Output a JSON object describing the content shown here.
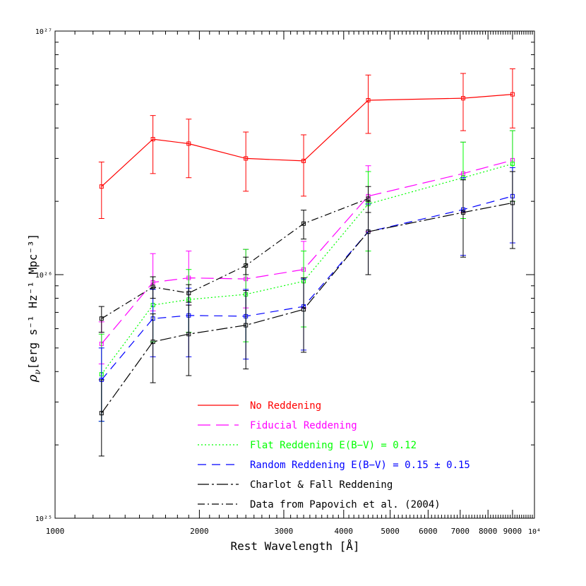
{
  "chart_data": {
    "type": "line",
    "xlabel": "Rest Wavelength [Å]",
    "ylabel_main": "ρ",
    "ylabel_sub": "ν",
    "ylabel_unit": "[erg s⁻¹ Hz⁻¹ Mpc⁻³]",
    "x_scale": "log",
    "y_scale": "log",
    "xlim": [
      1000,
      10000
    ],
    "ylim": [
      1e+25,
      1e+27
    ],
    "x_ticks": [
      {
        "value": 1000,
        "label": "1000"
      },
      {
        "value": 2000,
        "label": "2000"
      },
      {
        "value": 3000,
        "label": "3000"
      },
      {
        "value": 4000,
        "label": "4000"
      },
      {
        "value": 5000,
        "label": "5000"
      },
      {
        "value": 6000,
        "label": "6000"
      },
      {
        "value": 7000,
        "label": "7000"
      },
      {
        "value": 8000,
        "label": "8000"
      },
      {
        "value": 9000,
        "label": "9000"
      },
      {
        "value": 10000,
        "label": "10⁴"
      }
    ],
    "y_ticks": [
      {
        "value": 1e+25,
        "label": "10²⁵"
      },
      {
        "value": 1e+26,
        "label": "10²⁶"
      },
      {
        "value": 1e+27,
        "label": "10²⁷"
      }
    ],
    "legend_position": "bottom-center",
    "x": [
      1250,
      1600,
      1900,
      2500,
      3300,
      4500,
      7100,
      9000
    ],
    "series": [
      {
        "name": "No Reddening",
        "color": "#ff0000",
        "dash": "",
        "values": [
          2.3e+26,
          3.6e+26,
          3.45e+26,
          3e+26,
          2.93e+26,
          5.2e+26,
          5.3e+26,
          5.5e+26
        ],
        "err_low": [
          1.7e+26,
          2.6e+26,
          2.5e+26,
          2.2e+26,
          2.1e+26,
          3.8e+26,
          3.9e+26,
          4e+26
        ],
        "err_high": [
          2.9e+26,
          4.5e+26,
          4.35e+26,
          3.85e+26,
          3.75e+26,
          6.6e+26,
          6.7e+26,
          7e+26
        ]
      },
      {
        "name": "Fiducial Reddening",
        "color": "#ff00ff",
        "dash": "18,8",
        "values": [
          5.2e+25,
          9.3e+25,
          9.7e+25,
          9.6e+25,
          1.05e+26,
          2.1e+26,
          2.6e+26,
          2.95e+26
        ],
        "err_low": [
          4.3e+25,
          7.1e+25,
          7.5e+25,
          7.3e+25,
          7.3e+25,
          1.5e+26,
          1.8e+26,
          2e+26
        ],
        "err_high": [
          6.4e+25,
          1.22e+26,
          1.25e+26,
          1.27e+26,
          1.37e+26,
          2.8e+26,
          3.5e+26,
          3.9e+26
        ]
      },
      {
        "name": "Flat Reddening E(B−V) = 0.12",
        "color": "#00ff00",
        "dash": "2,3",
        "values": [
          3.9e+25,
          7.5e+25,
          7.9e+25,
          8.3e+25,
          9.4e+25,
          1.95e+26,
          2.5e+26,
          2.85e+26
        ],
        "err_low": [
          2.5e+25,
          5.3e+25,
          5.8e+25,
          5.3e+25,
          6.1e+25,
          1.25e+26,
          1.7e+26,
          2e+26
        ],
        "err_high": [
          5.7e+25,
          9.8e+25,
          1.05e+26,
          1.27e+26,
          1.25e+26,
          2.65e+26,
          3.5e+26,
          3.9e+26
        ]
      },
      {
        "name": "Random Reddening E(B−V) = 0.15 ± 0.15",
        "color": "#0000ff",
        "dash": "12,8",
        "values": [
          3.7e+25,
          6.6e+25,
          6.8e+25,
          6.75e+25,
          7.4e+25,
          1.5e+26,
          1.85e+26,
          2.1e+26
        ],
        "err_low": [
          2.5e+25,
          4.6e+25,
          4.6e+25,
          4.5e+25,
          4.9e+25,
          1e+26,
          1.2e+26,
          1.35e+26
        ],
        "err_high": [
          5e+25,
          8.7e+25,
          8.8e+25,
          8.7e+25,
          9.6e+25,
          1.95e+26,
          2.5e+26,
          2.75e+26
        ]
      },
      {
        "name": "Charlot & Fall Reddening",
        "color": "#000000",
        "dash": "16,4,3,4",
        "values": [
          2.7e+25,
          5.3e+25,
          5.7e+25,
          6.2e+25,
          7.2e+25,
          1.5e+26,
          1.8e+26,
          1.97e+26
        ],
        "err_low": [
          1.8e+25,
          3.6e+25,
          3.85e+25,
          4.1e+25,
          4.8e+25,
          1e+26,
          1.18e+26,
          1.28e+26
        ],
        "err_high": [
          3.7e+25,
          6.9e+25,
          7.5e+25,
          8.6e+25,
          9.7e+25,
          2e+26,
          2.45e+26,
          2.65e+26
        ]
      },
      {
        "name": "Data from Papovich et al. (2004)",
        "color": "#000000",
        "dash": "10,4,2,4",
        "x": [
          1250,
          1600,
          1900,
          2500,
          3300,
          4500
        ],
        "values": [
          6.6e+25,
          8.9e+25,
          8.4e+25,
          1.09e+26,
          1.62e+26,
          2.05e+26
        ],
        "err_low": [
          5.8e+25,
          8e+25,
          7.7e+25,
          1e+26,
          1.4e+26,
          1.8e+26
        ],
        "err_high": [
          7.4e+25,
          9.8e+25,
          9.1e+25,
          1.18e+26,
          1.84e+26,
          2.3e+26
        ]
      }
    ]
  }
}
